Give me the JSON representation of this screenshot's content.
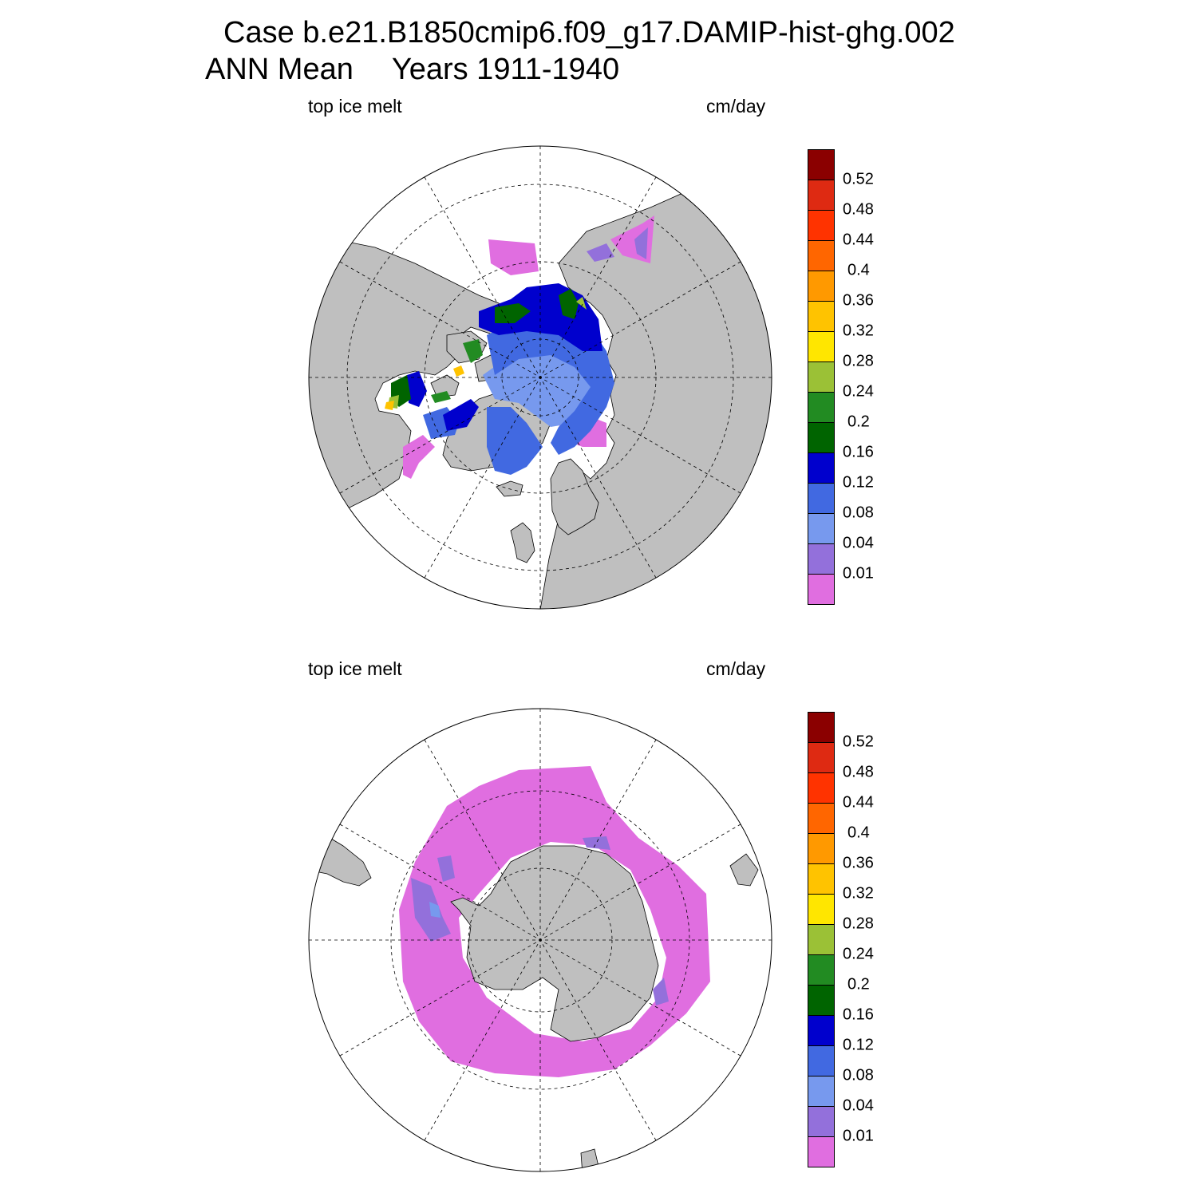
{
  "title": {
    "line1": "Case b.e21.B1850cmip6.f09_g17.DAMIP-hist-ghg.002",
    "line2_left": "ANN Mean",
    "line2_right": "Years 1911-1940"
  },
  "panels": [
    {
      "id": "north",
      "variable": "top ice melt",
      "units": "cm/day",
      "hemisphere": "Arctic (north polar stereographic)"
    },
    {
      "id": "south",
      "variable": "top ice melt",
      "units": "cm/day",
      "hemisphere": "Antarctic (south polar stereographic)"
    }
  ],
  "colorbar": {
    "labels": [
      "0.52",
      "0.48",
      "0.44",
      "0.4",
      "0.36",
      "0.32",
      "0.28",
      "0.24",
      "0.2",
      "0.16",
      "0.12",
      "0.08",
      "0.04",
      "0.01"
    ],
    "colors": [
      "#8b0000",
      "#de2a12",
      "#ff3300",
      "#ff6600",
      "#ff9900",
      "#ffc300",
      "#ffe600",
      "#9bc136",
      "#228b22",
      "#006400",
      "#0000cd",
      "#4169e1",
      "#7799ee",
      "#9370db",
      "#e06ee0"
    ]
  },
  "colors": {
    "land": "#bfbfbf",
    "ocean": "#ffffff",
    "grid_line": "#000000"
  }
}
